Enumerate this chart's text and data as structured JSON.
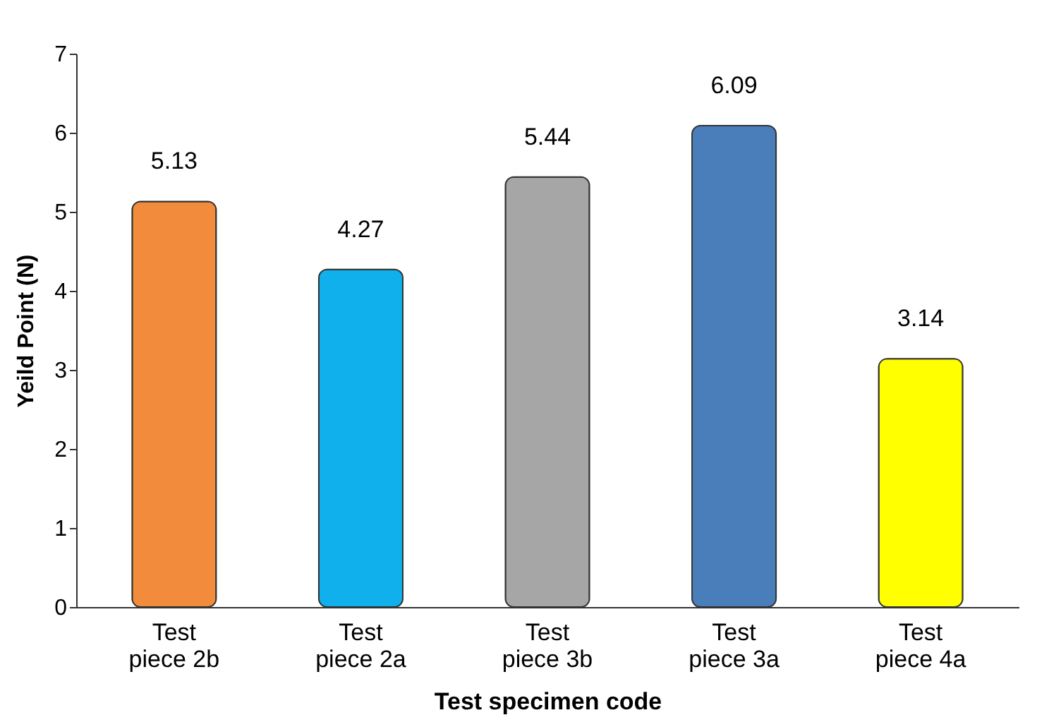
{
  "chart_data": {
    "type": "bar",
    "xlabel": "Test specimen code",
    "ylabel": "Yeild Point (N)",
    "categories": [
      "Test piece 2b",
      "Test piece 2a",
      "Test piece 3b",
      "Test piece 3a",
      "Test piece 4a"
    ],
    "values": [
      5.13,
      4.27,
      5.44,
      6.09,
      3.14
    ],
    "colors": [
      "#f28c3c",
      "#0fb0ec",
      "#a6a6a6",
      "#4a7ebb",
      "#ffff00"
    ],
    "ylim": [
      0,
      7
    ],
    "yticks": [
      0,
      1,
      2,
      3,
      4,
      5,
      6,
      7
    ],
    "grid": false,
    "data_labels": true
  }
}
